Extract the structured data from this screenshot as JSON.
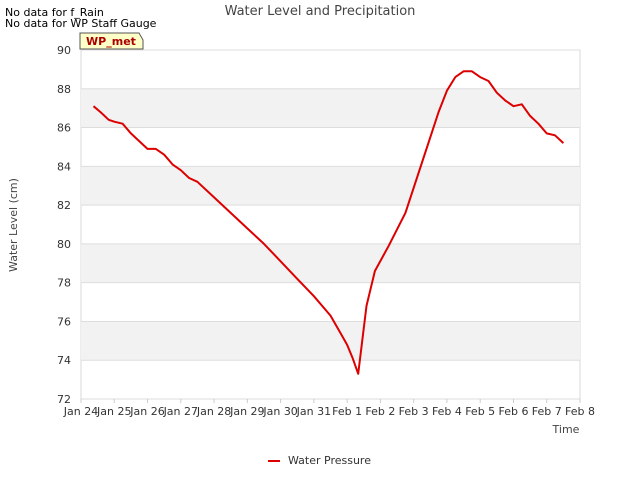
{
  "notes": [
    "No data for f_Rain",
    "No data for WP Staff Gauge"
  ],
  "site_badge": "WP_met",
  "chart_data": {
    "type": "line",
    "title": "Water Level and Precipitation",
    "xlabel": "Time",
    "ylabel": "Water Level (cm)",
    "ylim": [
      72,
      90
    ],
    "yticks": [
      72,
      74,
      76,
      78,
      80,
      82,
      84,
      86,
      88,
      90
    ],
    "xlim": [
      "2024-01-24",
      "2024-02-08"
    ],
    "xtick_labels": [
      "Jan 24",
      "Jan 25",
      "Jan 26",
      "Jan 27",
      "Jan 28",
      "Jan 29",
      "Jan 30",
      "Jan 31",
      "Feb 1",
      "Feb 2",
      "Feb 3",
      "Feb 4",
      "Feb 5",
      "Feb 6",
      "Feb 7",
      "Feb 8"
    ],
    "grid": true,
    "legend_position": "bottom-center",
    "series": [
      {
        "name": "Water Pressure",
        "color": "#dd0000",
        "x": [
          "2024-01-24 09:00",
          "2024-01-24 14:00",
          "2024-01-24 20:00",
          "2024-01-25 00:00",
          "2024-01-25 06:00",
          "2024-01-25 12:00",
          "2024-01-25 18:00",
          "2024-01-26 00:00",
          "2024-01-26 06:00",
          "2024-01-26 12:00",
          "2024-01-26 18:00",
          "2024-01-27 00:00",
          "2024-01-27 06:00",
          "2024-01-27 12:00",
          "2024-01-28 00:00",
          "2024-01-28 12:00",
          "2024-01-29 00:00",
          "2024-01-29 12:00",
          "2024-01-30 00:00",
          "2024-01-30 12:00",
          "2024-01-31 00:00",
          "2024-01-31 12:00",
          "2024-01-31 20:00",
          "2024-02-01 00:00",
          "2024-02-01 04:00",
          "2024-02-01 08:00",
          "2024-02-01 14:00",
          "2024-02-01 20:00",
          "2024-02-02 06:00",
          "2024-02-02 18:00",
          "2024-02-03 06:00",
          "2024-02-03 18:00",
          "2024-02-04 00:00",
          "2024-02-04 06:00",
          "2024-02-04 12:00",
          "2024-02-04 18:00",
          "2024-02-05 00:00",
          "2024-02-05 06:00",
          "2024-02-05 12:00",
          "2024-02-05 18:00",
          "2024-02-06 00:00",
          "2024-02-06 06:00",
          "2024-02-06 12:00",
          "2024-02-06 18:00",
          "2024-02-07 00:00",
          "2024-02-07 06:00",
          "2024-02-07 12:00"
        ],
        "y": [
          87.1,
          86.8,
          86.4,
          86.3,
          86.2,
          85.7,
          85.3,
          84.9,
          84.9,
          84.6,
          84.1,
          83.8,
          83.4,
          83.2,
          82.4,
          81.6,
          80.8,
          80.0,
          79.1,
          78.2,
          77.3,
          76.3,
          75.3,
          74.8,
          74.1,
          73.3,
          76.8,
          78.6,
          79.9,
          81.6,
          84.2,
          86.8,
          87.9,
          88.6,
          88.9,
          88.9,
          88.6,
          88.4,
          87.8,
          87.4,
          87.1,
          87.2,
          86.6,
          86.2,
          85.7,
          85.6,
          85.2
        ]
      }
    ]
  }
}
